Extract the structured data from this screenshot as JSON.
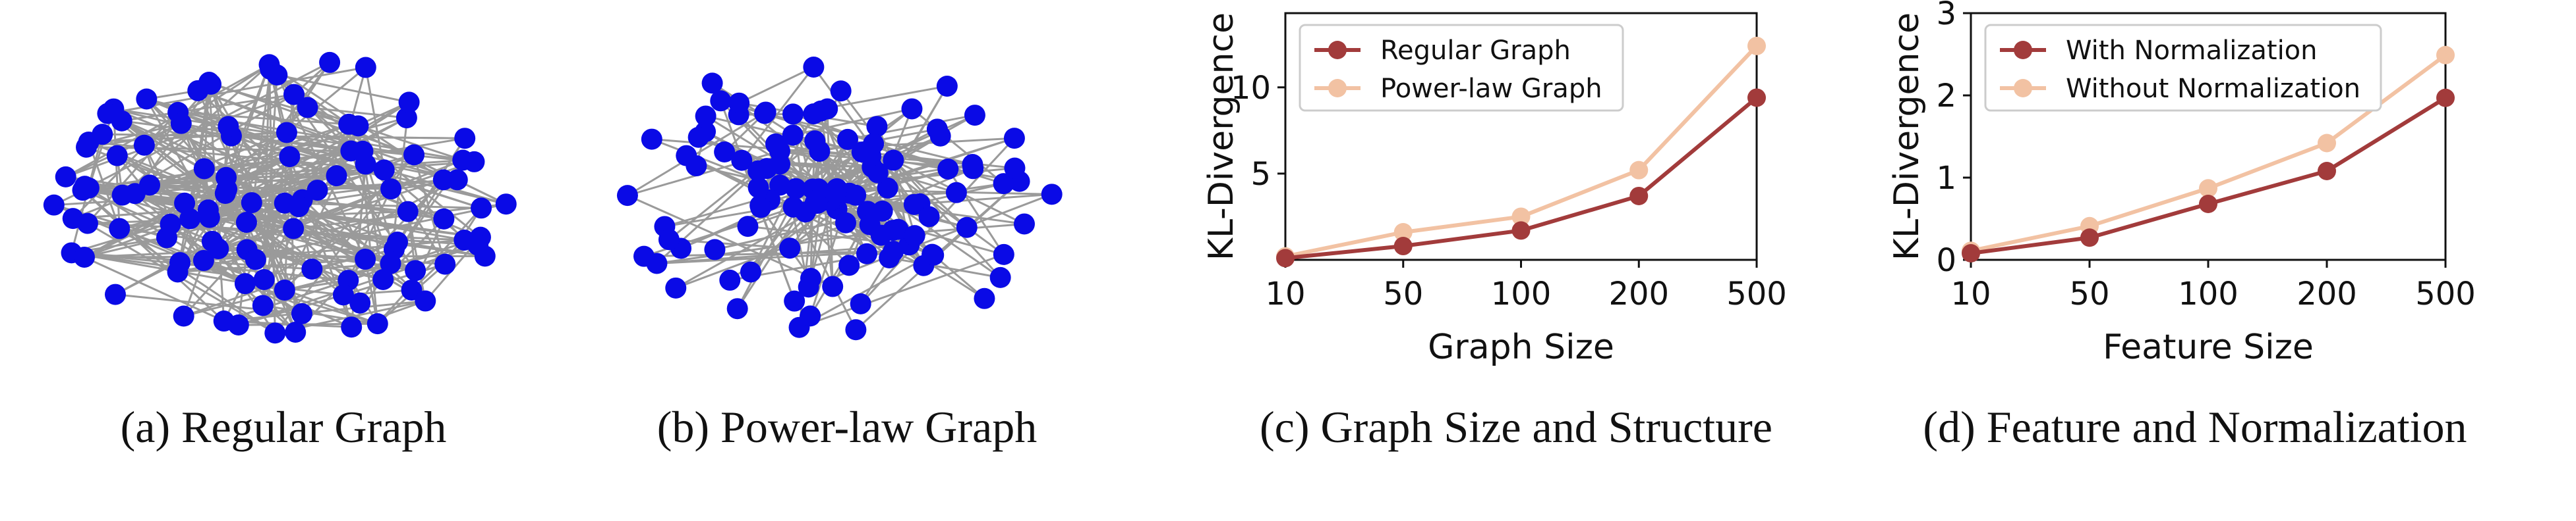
{
  "captions": [
    "(a) Regular Graph",
    "(b) Power-law Graph",
    "(c) Graph Size and Structure",
    "(d) Feature and Normalization"
  ],
  "colors": {
    "node": "#0a0ae6",
    "edge": "#9a9a9a",
    "series_dark": "#a23b3b",
    "series_light": "#f2c2a3"
  },
  "chart_data": [
    {
      "type": "network",
      "panel": "a",
      "nodes": 112,
      "structure": "regular"
    },
    {
      "type": "network",
      "panel": "b",
      "nodes": 118,
      "structure": "power-law"
    },
    {
      "type": "line",
      "panel": "c",
      "xlabel": "Graph Size",
      "ylabel": "KL-Divergence",
      "categories": [
        "10",
        "50",
        "100",
        "200",
        "500"
      ],
      "ylim": [
        0,
        14.3
      ],
      "yticks": [
        5,
        10
      ],
      "legend_position": "top-left",
      "series": [
        {
          "name": "Regular Graph",
          "color": "#a23b3b",
          "values": [
            0.1,
            0.8,
            1.7,
            3.7,
            9.4
          ]
        },
        {
          "name": "Power-law Graph",
          "color": "#f2c2a3",
          "values": [
            0.2,
            1.6,
            2.5,
            5.2,
            12.4
          ]
        }
      ]
    },
    {
      "type": "line",
      "panel": "d",
      "xlabel": "Feature Size",
      "ylabel": "KL-Divergence",
      "categories": [
        "10",
        "50",
        "100",
        "200",
        "500"
      ],
      "ylim": [
        0,
        3
      ],
      "yticks": [
        0,
        1,
        2,
        3
      ],
      "legend_position": "top-left",
      "series": [
        {
          "name": "With Normalization",
          "color": "#a23b3b",
          "values": [
            0.08,
            0.27,
            0.68,
            1.08,
            1.97
          ]
        },
        {
          "name": "Without Normalization",
          "color": "#f2c2a3",
          "values": [
            0.11,
            0.41,
            0.87,
            1.42,
            2.49
          ]
        }
      ]
    }
  ]
}
